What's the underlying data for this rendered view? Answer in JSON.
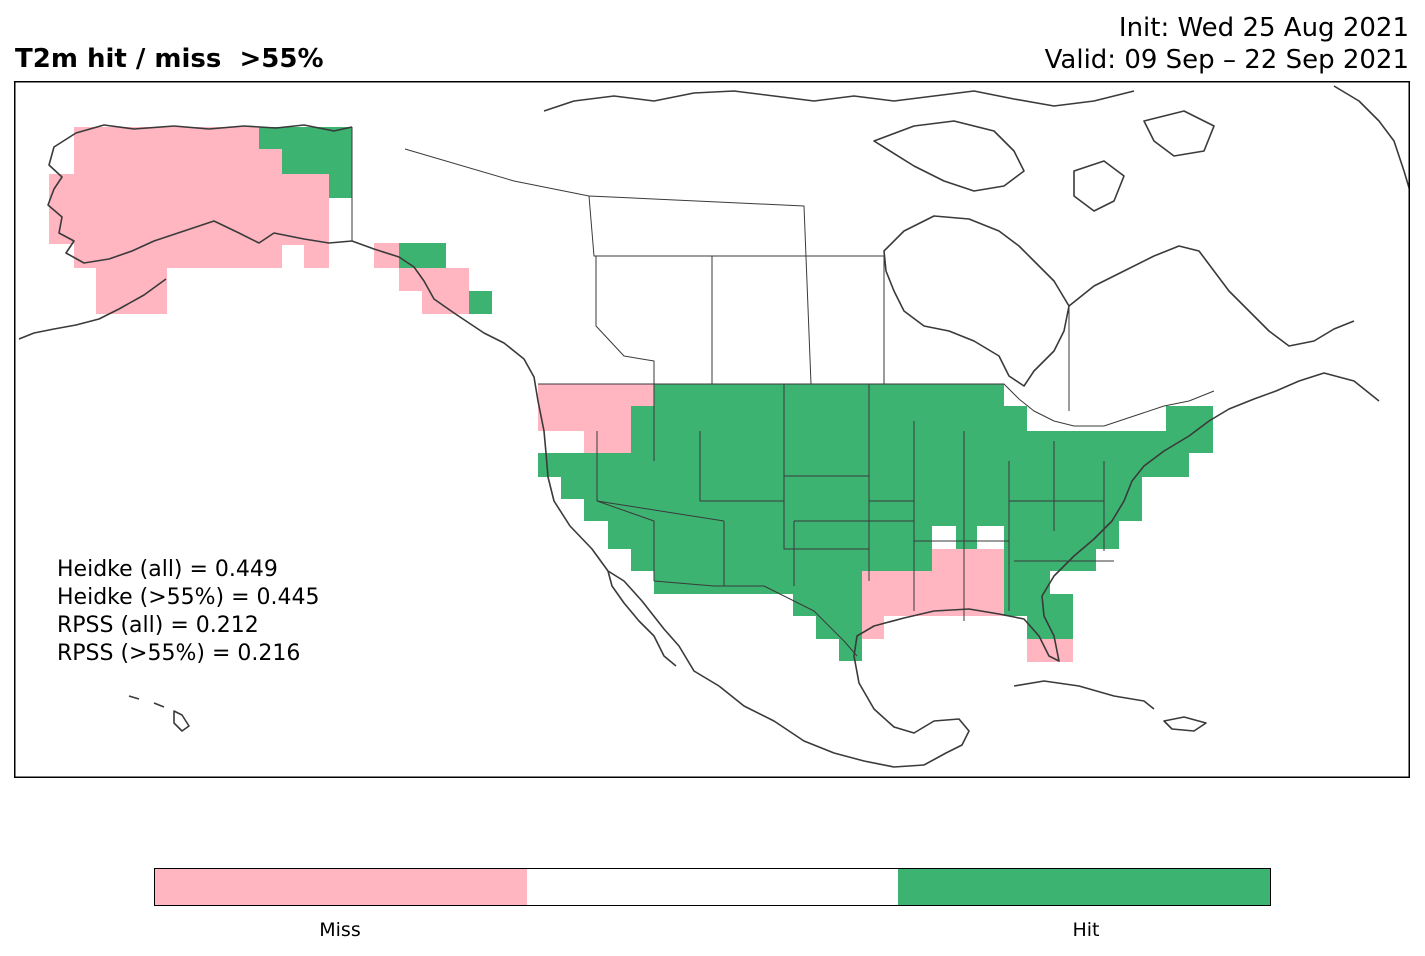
{
  "title_left": "T2m hit / miss  >55%",
  "title_right": {
    "init": "Init: Wed 25 Aug 2021",
    "valid": "Valid: 09 Sep – 22 Sep 2021"
  },
  "stats": [
    "Heidke (all) = 0.449",
    "Heidke (>55%) = 0.445",
    "RPSS (all) = 0.212",
    "RPSS (>55%) = 0.216"
  ],
  "colors": {
    "miss": "#FFB6C1",
    "neutral": "#FFFFFF",
    "hit": "#3CB371",
    "coast": "#3a3a3a"
  },
  "colorbar": {
    "segments": [
      {
        "name": "miss",
        "color": "#FFB6C1"
      },
      {
        "name": "neutral",
        "color": "#FFFFFF"
      },
      {
        "name": "hit",
        "color": "#3CB371"
      }
    ],
    "labels": [
      "Miss",
      "Hit"
    ]
  }
}
